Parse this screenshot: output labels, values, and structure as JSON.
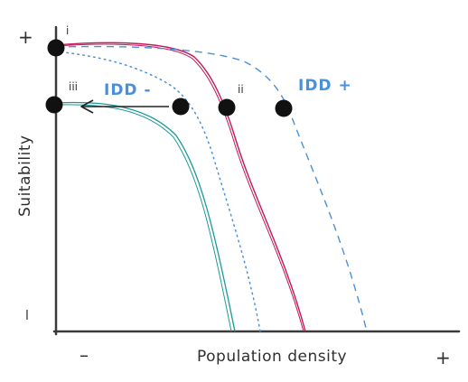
{
  "diagram": {
    "labels": {
      "x_axis": "Population density",
      "y_axis": "Suitability",
      "x_minus": "–",
      "x_plus": "+",
      "y_plus": "+",
      "y_low": "l",
      "point_i": "i",
      "point_ii": "ii",
      "point_iii": "iii",
      "idd_minus": "IDD -",
      "idd_plus": "IDD +"
    },
    "colors": {
      "axis": "#3a3a3a",
      "baseline_curve": "#c2185b",
      "idd_plus_curve": "#4a90d9",
      "idd_minus_curve": "#4a90d9",
      "low_curve": "#1a9a96",
      "idd_label": "#4a90d9",
      "point": "#111111"
    },
    "icons": [
      "arrow-left-icon"
    ]
  }
}
